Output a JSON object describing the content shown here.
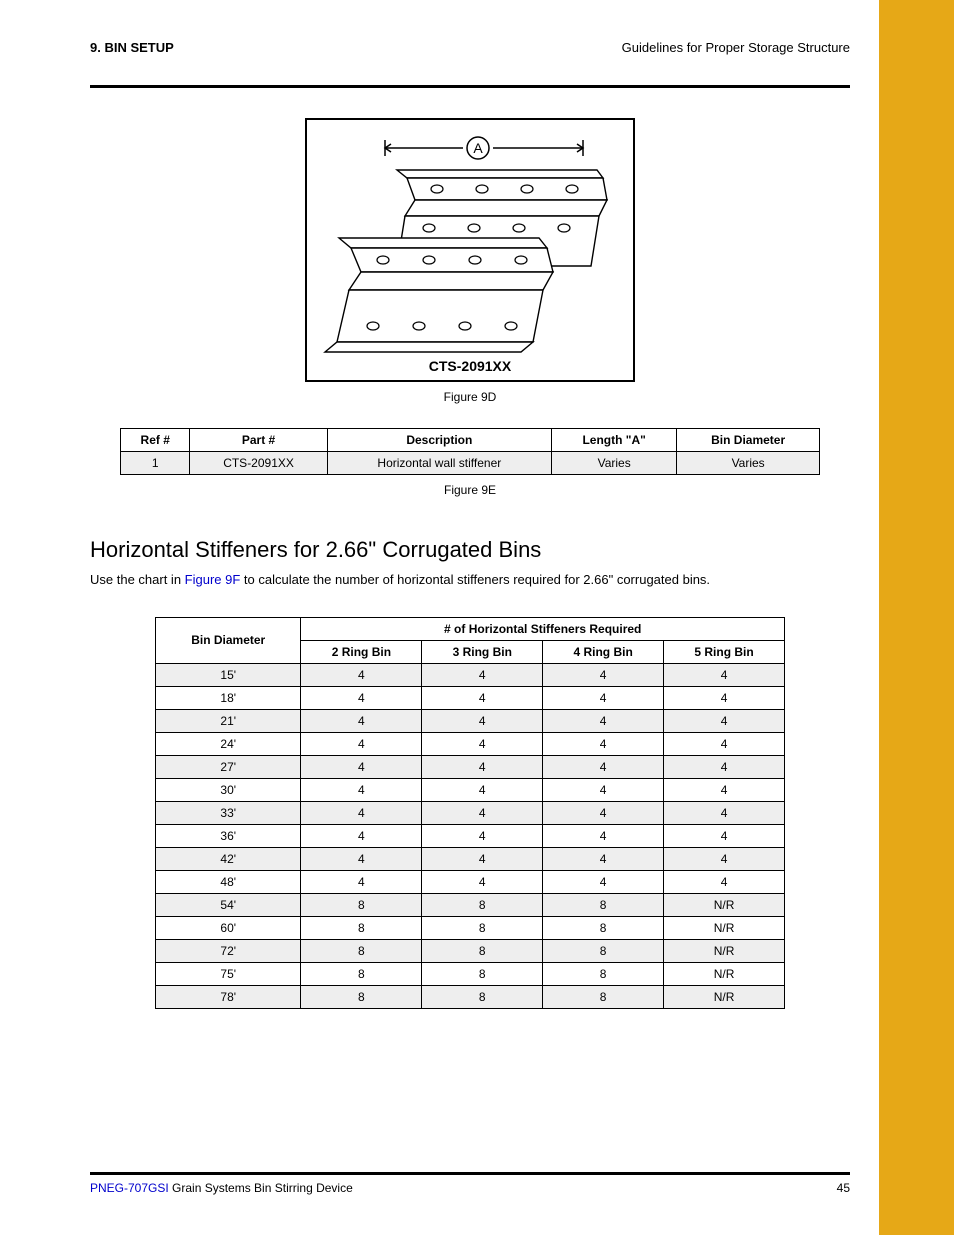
{
  "colors": {
    "sidebar": "#e6a817",
    "row_shade": "#eeeeee",
    "link": "#0000cc",
    "rule": "#000000"
  },
  "header": {
    "chapter": "9. BIN SETUP",
    "breadcrumb": "Guidelines for Proper Storage Structure"
  },
  "figure": {
    "part_no": "CTS-2091XX",
    "dim_label": "A",
    "caption": "Figure 9D"
  },
  "table1": {
    "caption": "Figure 9E",
    "columns": [
      "Ref #",
      "Part #",
      "Description",
      "Length \"A\"",
      "Bin Diameter"
    ],
    "rows": [
      [
        "1",
        "CTS-2091XX",
        "Horizontal wall stiffener",
        "Varies",
        "Varies"
      ]
    ]
  },
  "section": {
    "heading": "Horizontal Stiffeners for 2.66\" Corrugated Bins",
    "body_prefix": "Use the chart in ",
    "body_link_text": "Figure 9F",
    "body_suffix": " to calculate the number of horizontal stiffeners required for 2.66\" corrugated bins."
  },
  "table2": {
    "row_header": "Bin Diameter",
    "group_header": "# of Horizontal Stiffeners Required",
    "subheaders": [
      "2 Ring Bin",
      "3 Ring Bin",
      "4 Ring Bin",
      "5 Ring Bin"
    ],
    "rows": [
      [
        "15'",
        "4",
        "4",
        "4",
        "4"
      ],
      [
        "18'",
        "4",
        "4",
        "4",
        "4"
      ],
      [
        "21'",
        "4",
        "4",
        "4",
        "4"
      ],
      [
        "24'",
        "4",
        "4",
        "4",
        "4"
      ],
      [
        "27'",
        "4",
        "4",
        "4",
        "4"
      ],
      [
        "30'",
        "4",
        "4",
        "4",
        "4"
      ],
      [
        "33'",
        "4",
        "4",
        "4",
        "4"
      ],
      [
        "36'",
        "4",
        "4",
        "4",
        "4"
      ],
      [
        "42'",
        "4",
        "4",
        "4",
        "4"
      ],
      [
        "48'",
        "4",
        "4",
        "4",
        "4"
      ],
      [
        "54'",
        "8",
        "8",
        "8",
        "N/R"
      ],
      [
        "60'",
        "8",
        "8",
        "8",
        "N/R"
      ],
      [
        "72'",
        "8",
        "8",
        "8",
        "N/R"
      ],
      [
        "75'",
        "8",
        "8",
        "8",
        "N/R"
      ],
      [
        "78'",
        "8",
        "8",
        "8",
        "N/R"
      ]
    ]
  },
  "footer": {
    "doc_id": "PNEG-707GSI ",
    "doc_title": "Grain Systems Bin Stirring Device",
    "page_no": "45"
  }
}
